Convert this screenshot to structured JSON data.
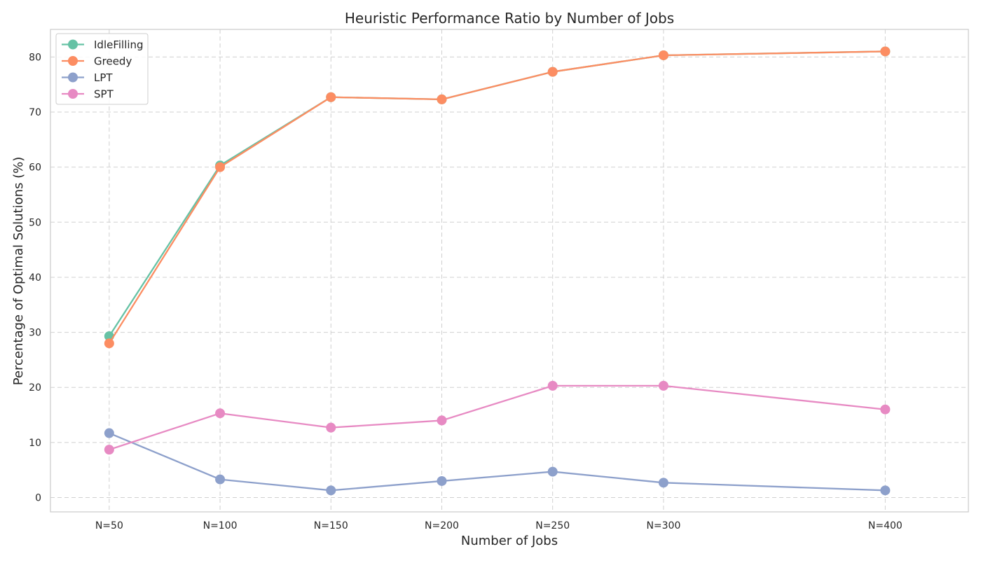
{
  "chart_data": {
    "type": "line",
    "title": "Heuristic Performance Ratio by Number of Jobs",
    "xlabel": "Number of Jobs",
    "ylabel": "Percentage of Optimal Solutions (%)",
    "x": [
      50,
      100,
      150,
      200,
      250,
      300,
      400
    ],
    "x_tick_labels": [
      "N=50",
      "N=100",
      "N=150",
      "N=200",
      "N=250",
      "N=300",
      "N=400"
    ],
    "xlim": [
      23.5,
      437.5
    ],
    "ylim": [
      -2.6,
      85
    ],
    "y_ticks": [
      0,
      10,
      20,
      30,
      40,
      50,
      60,
      70,
      80
    ],
    "grid": true,
    "grid_style": "dashed",
    "legend_position": "top-left",
    "series": [
      {
        "name": "IdleFilling",
        "color": "#66c2a5",
        "values": [
          29.3,
          60.3,
          72.7,
          72.3,
          77.3,
          80.3,
          81.0
        ]
      },
      {
        "name": "Greedy",
        "color": "#fc8d62",
        "values": [
          28.0,
          60.0,
          72.7,
          72.3,
          77.3,
          80.3,
          81.0
        ]
      },
      {
        "name": "LPT",
        "color": "#8da0cb",
        "values": [
          11.7,
          3.3,
          1.3,
          3.0,
          4.7,
          2.7,
          1.3
        ]
      },
      {
        "name": "SPT",
        "color": "#e78ac3",
        "values": [
          8.7,
          15.3,
          12.7,
          14.0,
          20.3,
          20.3,
          16.0
        ]
      }
    ]
  }
}
